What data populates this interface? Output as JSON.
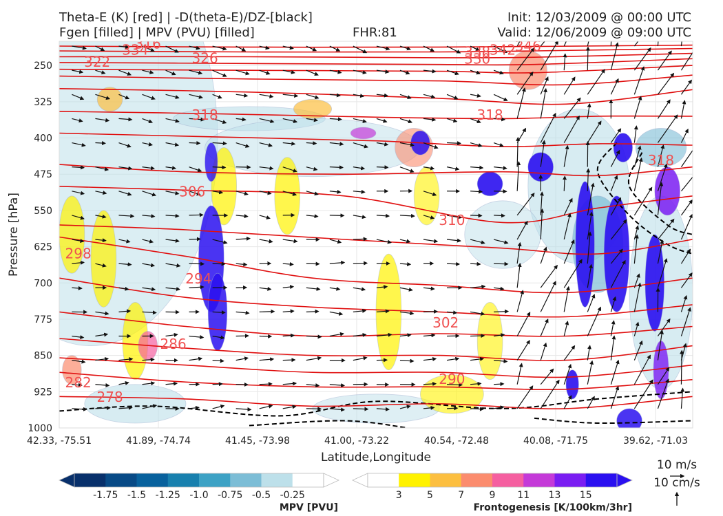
{
  "header": {
    "title_line1": "Theta-E (K) [red] | -D(theta-E)/DZ-[black]",
    "title_line2": "Fgen [filled] | MPV (PVU) [filled]",
    "fhr": "FHR:81",
    "init": "Init: 12/03/2009 @ 00:00 UTC",
    "valid": "Valid: 12/06/2009 @ 09:00 UTC"
  },
  "chart_data": {
    "type": "cross-section",
    "ylabel": "Pressure [hPa]",
    "xlabel": "Latitude,Longitude",
    "y_ticks": [
      250,
      325,
      400,
      475,
      550,
      625,
      700,
      775,
      850,
      925,
      1000
    ],
    "ylim": [
      200,
      1000
    ],
    "y_scale": "linear, inverted",
    "x_ticks": [
      "42.33, -75.51",
      "41.89, -74.74",
      "41.45, -73.98",
      "41.00, -73.22",
      "40.54, -72.48",
      "40.08, -71.75",
      "39.62, -71.03"
    ],
    "grid": true,
    "theta_e_contour_color": "#e01010",
    "theta_e_labels": [
      {
        "text": "316",
        "x": 0.14,
        "p": 205
      },
      {
        "text": "334",
        "x": 0.12,
        "p": 218
      },
      {
        "text": "322",
        "x": 0.06,
        "p": 243
      },
      {
        "text": "326",
        "x": 0.23,
        "p": 235
      },
      {
        "text": "338",
        "x": 0.66,
        "p": 222
      },
      {
        "text": "342",
        "x": 0.7,
        "p": 218
      },
      {
        "text": "346",
        "x": 0.74,
        "p": 210
      },
      {
        "text": "330",
        "x": 0.66,
        "p": 236
      },
      {
        "text": "318",
        "x": 0.23,
        "p": 352
      },
      {
        "text": "318",
        "x": 0.68,
        "p": 352
      },
      {
        "text": "318",
        "x": 0.95,
        "p": 446
      },
      {
        "text": "306",
        "x": 0.21,
        "p": 511
      },
      {
        "text": "310",
        "x": 0.62,
        "p": 570
      },
      {
        "text": "298",
        "x": 0.03,
        "p": 639
      },
      {
        "text": "294",
        "x": 0.22,
        "p": 691
      },
      {
        "text": "302",
        "x": 0.61,
        "p": 782
      },
      {
        "text": "286",
        "x": 0.18,
        "p": 826
      },
      {
        "text": "290",
        "x": 0.62,
        "p": 899
      },
      {
        "text": "282",
        "x": 0.03,
        "p": 906
      },
      {
        "text": "278",
        "x": 0.08,
        "p": 936
      }
    ],
    "theta_e_lines": [
      [
        [
          0,
          210
        ],
        [
          0.3,
          212
        ],
        [
          0.6,
          212
        ],
        [
          1,
          208
        ]
      ],
      [
        [
          0,
          220
        ],
        [
          0.3,
          222
        ],
        [
          0.6,
          222
        ],
        [
          0.75,
          220
        ],
        [
          1,
          215
        ]
      ],
      [
        [
          0,
          232
        ],
        [
          0.3,
          232
        ],
        [
          0.6,
          234
        ],
        [
          0.75,
          233
        ],
        [
          1,
          225
        ]
      ],
      [
        [
          0,
          244
        ],
        [
          0.3,
          246
        ],
        [
          0.6,
          248
        ],
        [
          0.75,
          248
        ],
        [
          1,
          236
        ]
      ],
      [
        [
          0,
          258
        ],
        [
          0.3,
          260
        ],
        [
          0.6,
          262
        ],
        [
          0.75,
          265
        ],
        [
          1,
          250
        ]
      ],
      [
        [
          0,
          272
        ],
        [
          0.3,
          278
        ],
        [
          0.6,
          282
        ],
        [
          0.8,
          290
        ],
        [
          1,
          270
        ]
      ],
      [
        [
          0,
          298
        ],
        [
          0.3,
          305
        ],
        [
          0.6,
          318
        ],
        [
          0.8,
          330
        ],
        [
          1,
          300
        ]
      ],
      [
        [
          0,
          345
        ],
        [
          0.25,
          350
        ],
        [
          0.5,
          357
        ],
        [
          0.7,
          360
        ],
        [
          0.85,
          355
        ],
        [
          1,
          355
        ]
      ],
      [
        [
          0,
          390
        ],
        [
          0.25,
          398
        ],
        [
          0.5,
          406
        ],
        [
          0.7,
          418
        ],
        [
          0.85,
          412
        ],
        [
          1,
          415
        ]
      ],
      [
        [
          0,
          455
        ],
        [
          0.2,
          470
        ],
        [
          0.45,
          475
        ],
        [
          0.7,
          470
        ],
        [
          0.85,
          478
        ],
        [
          1,
          460
        ]
      ],
      [
        [
          0,
          500
        ],
        [
          0.2,
          508
        ],
        [
          0.45,
          520
        ],
        [
          0.7,
          575
        ],
        [
          0.85,
          545
        ],
        [
          1,
          520
        ]
      ],
      [
        [
          0,
          580
        ],
        [
          0.2,
          590
        ],
        [
          0.45,
          610
        ],
        [
          0.7,
          628
        ],
        [
          0.85,
          640
        ],
        [
          1,
          610
        ]
      ],
      [
        [
          0,
          605
        ],
        [
          0.2,
          645
        ],
        [
          0.4,
          690
        ],
        [
          0.6,
          705
        ],
        [
          0.8,
          720
        ],
        [
          1,
          690
        ]
      ],
      [
        [
          0,
          690
        ],
        [
          0.2,
          730
        ],
        [
          0.4,
          750
        ],
        [
          0.6,
          760
        ],
        [
          0.8,
          770
        ],
        [
          1,
          745
        ]
      ],
      [
        [
          0,
          760
        ],
        [
          0.2,
          790
        ],
        [
          0.4,
          810
        ],
        [
          0.6,
          805
        ],
        [
          0.8,
          810
        ],
        [
          1,
          790
        ]
      ],
      [
        [
          0,
          815
        ],
        [
          0.2,
          835
        ],
        [
          0.4,
          850
        ],
        [
          0.6,
          850
        ],
        [
          0.8,
          860
        ],
        [
          1,
          830
        ]
      ],
      [
        [
          0,
          855
        ],
        [
          0.2,
          870
        ],
        [
          0.4,
          885
        ],
        [
          0.6,
          885
        ],
        [
          0.8,
          895
        ],
        [
          1,
          870
        ]
      ],
      [
        [
          0,
          885
        ],
        [
          0.2,
          905
        ],
        [
          0.4,
          915
        ],
        [
          0.6,
          915
        ],
        [
          0.8,
          920
        ],
        [
          1,
          900
        ]
      ],
      [
        [
          0,
          935
        ],
        [
          0.2,
          940
        ],
        [
          0.4,
          955
        ],
        [
          0.6,
          950
        ],
        [
          0.8,
          960
        ],
        [
          1,
          935
        ]
      ]
    ],
    "dtheta_dz_contour_color": "#000000",
    "mpv_colorbar": {
      "label": "MPV [PVU]",
      "ticks": [
        "-1.75",
        "-1.5",
        "-1.25",
        "-1.0",
        "-0.75",
        "-0.5",
        "-0.25"
      ],
      "colors": [
        "#08306b",
        "#084a86",
        "#08619d",
        "#1880ae",
        "#3da2c5",
        "#7cbdd6",
        "#bde0ea",
        "#ffffff"
      ]
    },
    "fgen_colorbar": {
      "label": "Frontogenesis [K/100km/3hr]",
      "ticks": [
        "3",
        "5",
        "7",
        "9",
        "11",
        "13",
        "15"
      ],
      "colors": [
        "#ffffff",
        "#fff200",
        "#fcbf40",
        "#fb8c6e",
        "#f55fa0",
        "#c43ad8",
        "#7a1df2",
        "#2a10f0"
      ]
    },
    "wind_reference": {
      "horizontal": "10 m/s",
      "vertical": "10 cm/s"
    }
  }
}
